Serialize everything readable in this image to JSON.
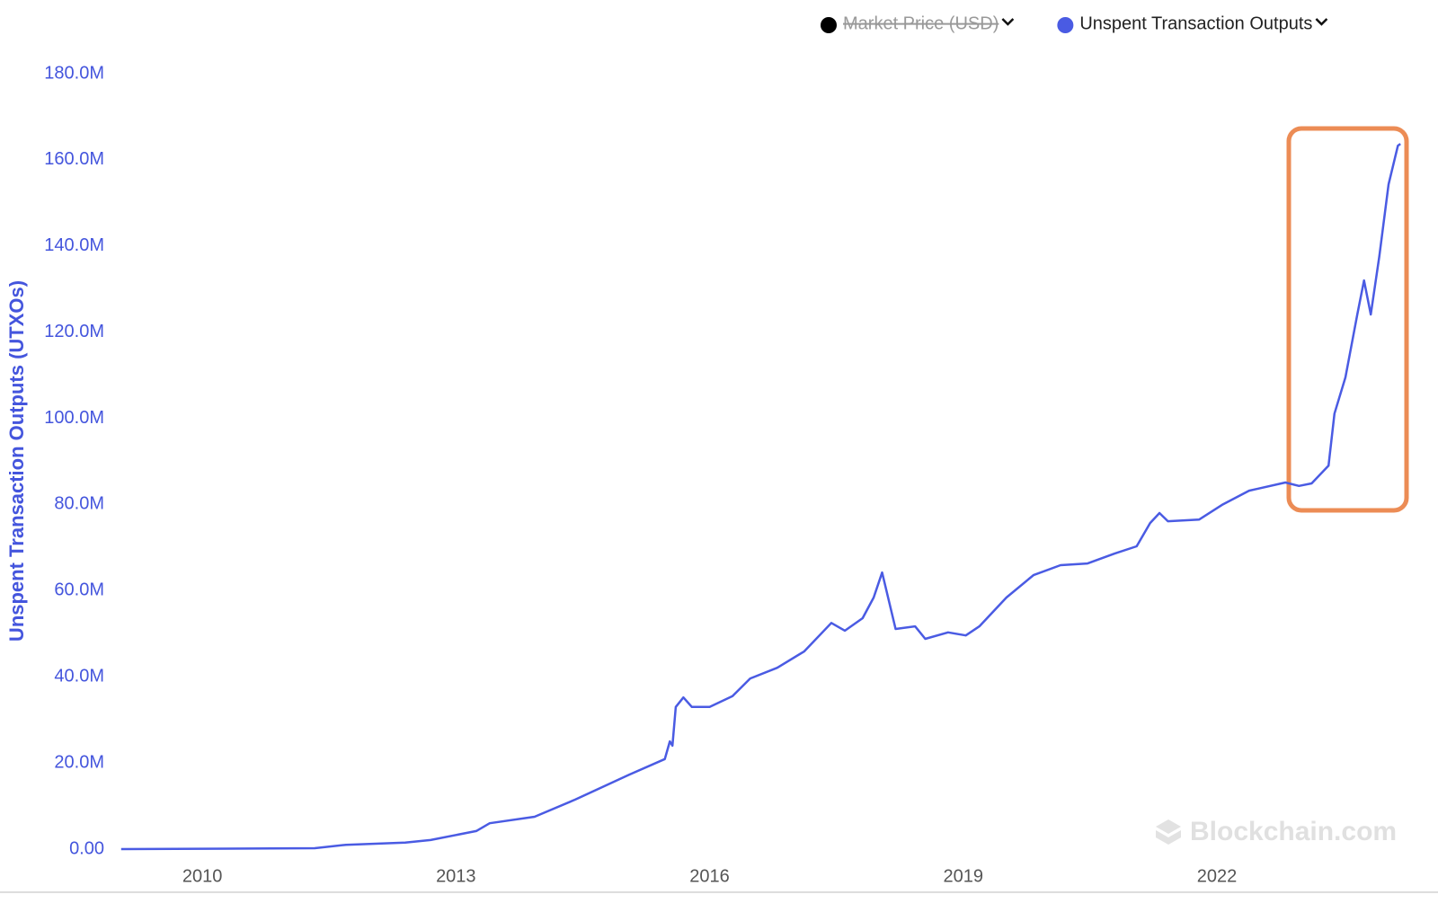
{
  "chart_data": {
    "type": "line",
    "y_axis_label": "Unspent Transaction Outputs (UTXOs)",
    "watermark": "Blockchain.com",
    "legend": [
      {
        "name": "Market Price (USD)",
        "color": "#000000",
        "hidden": true
      },
      {
        "name": "Unspent Transaction Outputs",
        "color": "#4a5be3",
        "hidden": false
      }
    ],
    "legend_position": "top-right",
    "x": [
      2009.04,
      2011.33,
      2011.7,
      2012.4,
      2012.7,
      2013.24,
      2013.4,
      2013.93,
      2014.41,
      2015.05,
      2015.47,
      2015.53,
      2015.56,
      2015.6,
      2015.69,
      2015.79,
      2016.0,
      2016.27,
      2016.48,
      2016.8,
      2017.12,
      2017.44,
      2017.6,
      2017.81,
      2017.94,
      2018.04,
      2018.2,
      2018.43,
      2018.55,
      2018.82,
      2019.03,
      2019.19,
      2019.51,
      2019.83,
      2020.15,
      2020.47,
      2020.79,
      2021.05,
      2021.21,
      2021.32,
      2021.42,
      2021.79,
      2022.06,
      2022.38,
      2022.81,
      2022.97,
      2023.12,
      2023.32,
      2023.39,
      2023.52,
      2023.66,
      2023.74,
      2023.82,
      2023.92,
      2024.03,
      2024.14,
      2024.17
    ],
    "series": [
      {
        "name": "Unspent Transaction Outputs",
        "color": "#4a5be3",
        "values": [
          0,
          200000,
          1000000,
          1500000,
          2100000,
          4200000,
          6000000,
          7500000,
          11500000,
          17300000,
          20900000,
          25000000,
          24000000,
          33000000,
          35200000,
          33000000,
          33000000,
          35500000,
          39600000,
          42100000,
          45900000,
          52500000,
          50700000,
          53600000,
          58400000,
          64200000,
          51100000,
          51700000,
          48800000,
          50300000,
          49600000,
          51700000,
          58400000,
          63600000,
          65900000,
          66300000,
          68600000,
          70300000,
          75700000,
          78000000,
          76100000,
          76500000,
          79900000,
          83200000,
          85100000,
          84300000,
          84900000,
          89000000,
          101100000,
          109500000,
          124100000,
          132000000,
          124100000,
          137600000,
          154300000,
          163300000,
          163700000
        ]
      }
    ],
    "xlim": [
      2009,
      2024.2
    ],
    "xticks": [
      2010,
      2013,
      2016,
      2019,
      2022
    ],
    "ylim": [
      0,
      180000000
    ],
    "yticks": [
      {
        "value": 0,
        "label": "0.00"
      },
      {
        "value": 20000000,
        "label": "20.0M"
      },
      {
        "value": 40000000,
        "label": "40.0M"
      },
      {
        "value": 60000000,
        "label": "60.0M"
      },
      {
        "value": 80000000,
        "label": "80.0M"
      },
      {
        "value": 100000000,
        "label": "100.0M"
      },
      {
        "value": 120000000,
        "label": "120.0M"
      },
      {
        "value": 140000000,
        "label": "140.0M"
      },
      {
        "value": 160000000,
        "label": "160.0M"
      },
      {
        "value": 180000000,
        "label": "180.0M"
      }
    ],
    "grid": false
  }
}
